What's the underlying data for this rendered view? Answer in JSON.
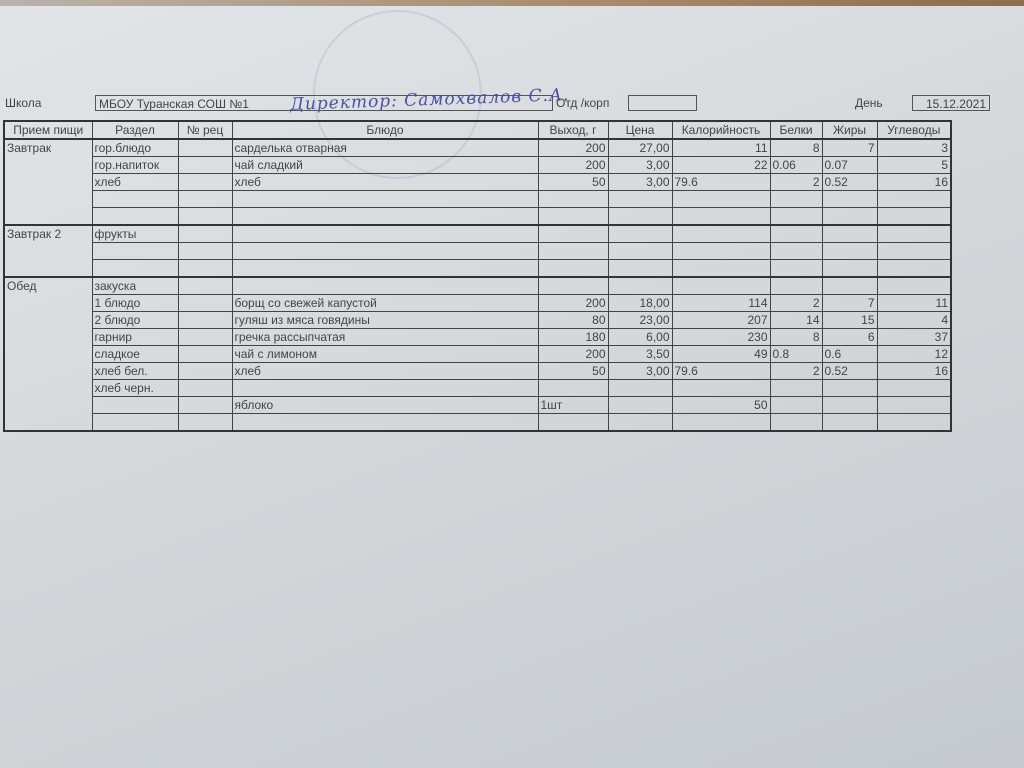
{
  "header": {
    "school_label": "Школа",
    "school_value": "МБОУ Туранская СОШ №1",
    "signature": "Директор: Самохвалов С.А.",
    "dept_label": "Отд /корп",
    "dept_value": "",
    "day_label": "День",
    "day_value": "15.12.2021"
  },
  "table": {
    "columns": [
      "Прием пищи",
      "Раздел",
      "№ рец",
      "Блюдо",
      "Выход, г",
      "Цена",
      "Калорийность",
      "Белки",
      "Жиры",
      "Углеводы"
    ],
    "groups": [
      {
        "meal": "Завтрак",
        "rows": [
          [
            "гор.блюдо",
            "",
            "сарделька отварная",
            "200",
            "27,00",
            "11",
            "8",
            "7",
            "3"
          ],
          [
            "гор.напиток",
            "",
            "чай сладкий",
            "200",
            "3,00",
            "22",
            "0.06",
            "0.07",
            "5"
          ],
          [
            "хлеб",
            "",
            "хлеб",
            "50",
            "3,00",
            "79.6",
            "2",
            "0.52",
            "16"
          ],
          [
            "",
            "",
            "",
            "",
            "",
            "",
            "",
            "",
            ""
          ],
          [
            "",
            "",
            "",
            "",
            "",
            "",
            "",
            "",
            ""
          ]
        ]
      },
      {
        "meal": "Завтрак 2",
        "rows": [
          [
            "фрукты",
            "",
            "",
            "",
            "",
            "",
            "",
            "",
            ""
          ],
          [
            "",
            "",
            "",
            "",
            "",
            "",
            "",
            "",
            ""
          ],
          [
            "",
            "",
            "",
            "",
            "",
            "",
            "",
            "",
            ""
          ]
        ]
      },
      {
        "meal": "Обед",
        "rows": [
          [
            "закуска",
            "",
            "",
            "",
            "",
            "",
            "",
            "",
            ""
          ],
          [
            "1 блюдо",
            "",
            "борщ со свежей капустой",
            "200",
            "18,00",
            "114",
            "2",
            "7",
            "11"
          ],
          [
            "2 блюдо",
            "",
            "гуляш из мяса говядины",
            "80",
            "23,00",
            "207",
            "14",
            "15",
            "4"
          ],
          [
            "гарнир",
            "",
            "гречка рассыпчатая",
            "180",
            "6,00",
            "230",
            "8",
            "6",
            "37"
          ],
          [
            "сладкое",
            "",
            "чай с лимоном",
            "200",
            "3,50",
            "49",
            "0.8",
            "0.6",
            "12"
          ],
          [
            "хлеб бел.",
            "",
            "хлеб",
            "50",
            "3,00",
            "79.6",
            "2",
            "0.52",
            "16"
          ],
          [
            "хлеб черн.",
            "",
            "",
            "",
            "",
            "",
            "",
            "",
            ""
          ],
          [
            "",
            "",
            "яблоко",
            "1шт",
            "",
            "50",
            "",
            "",
            ""
          ],
          [
            "",
            "",
            "",
            "",
            "",
            "",
            "",
            "",
            ""
          ]
        ]
      }
    ]
  }
}
